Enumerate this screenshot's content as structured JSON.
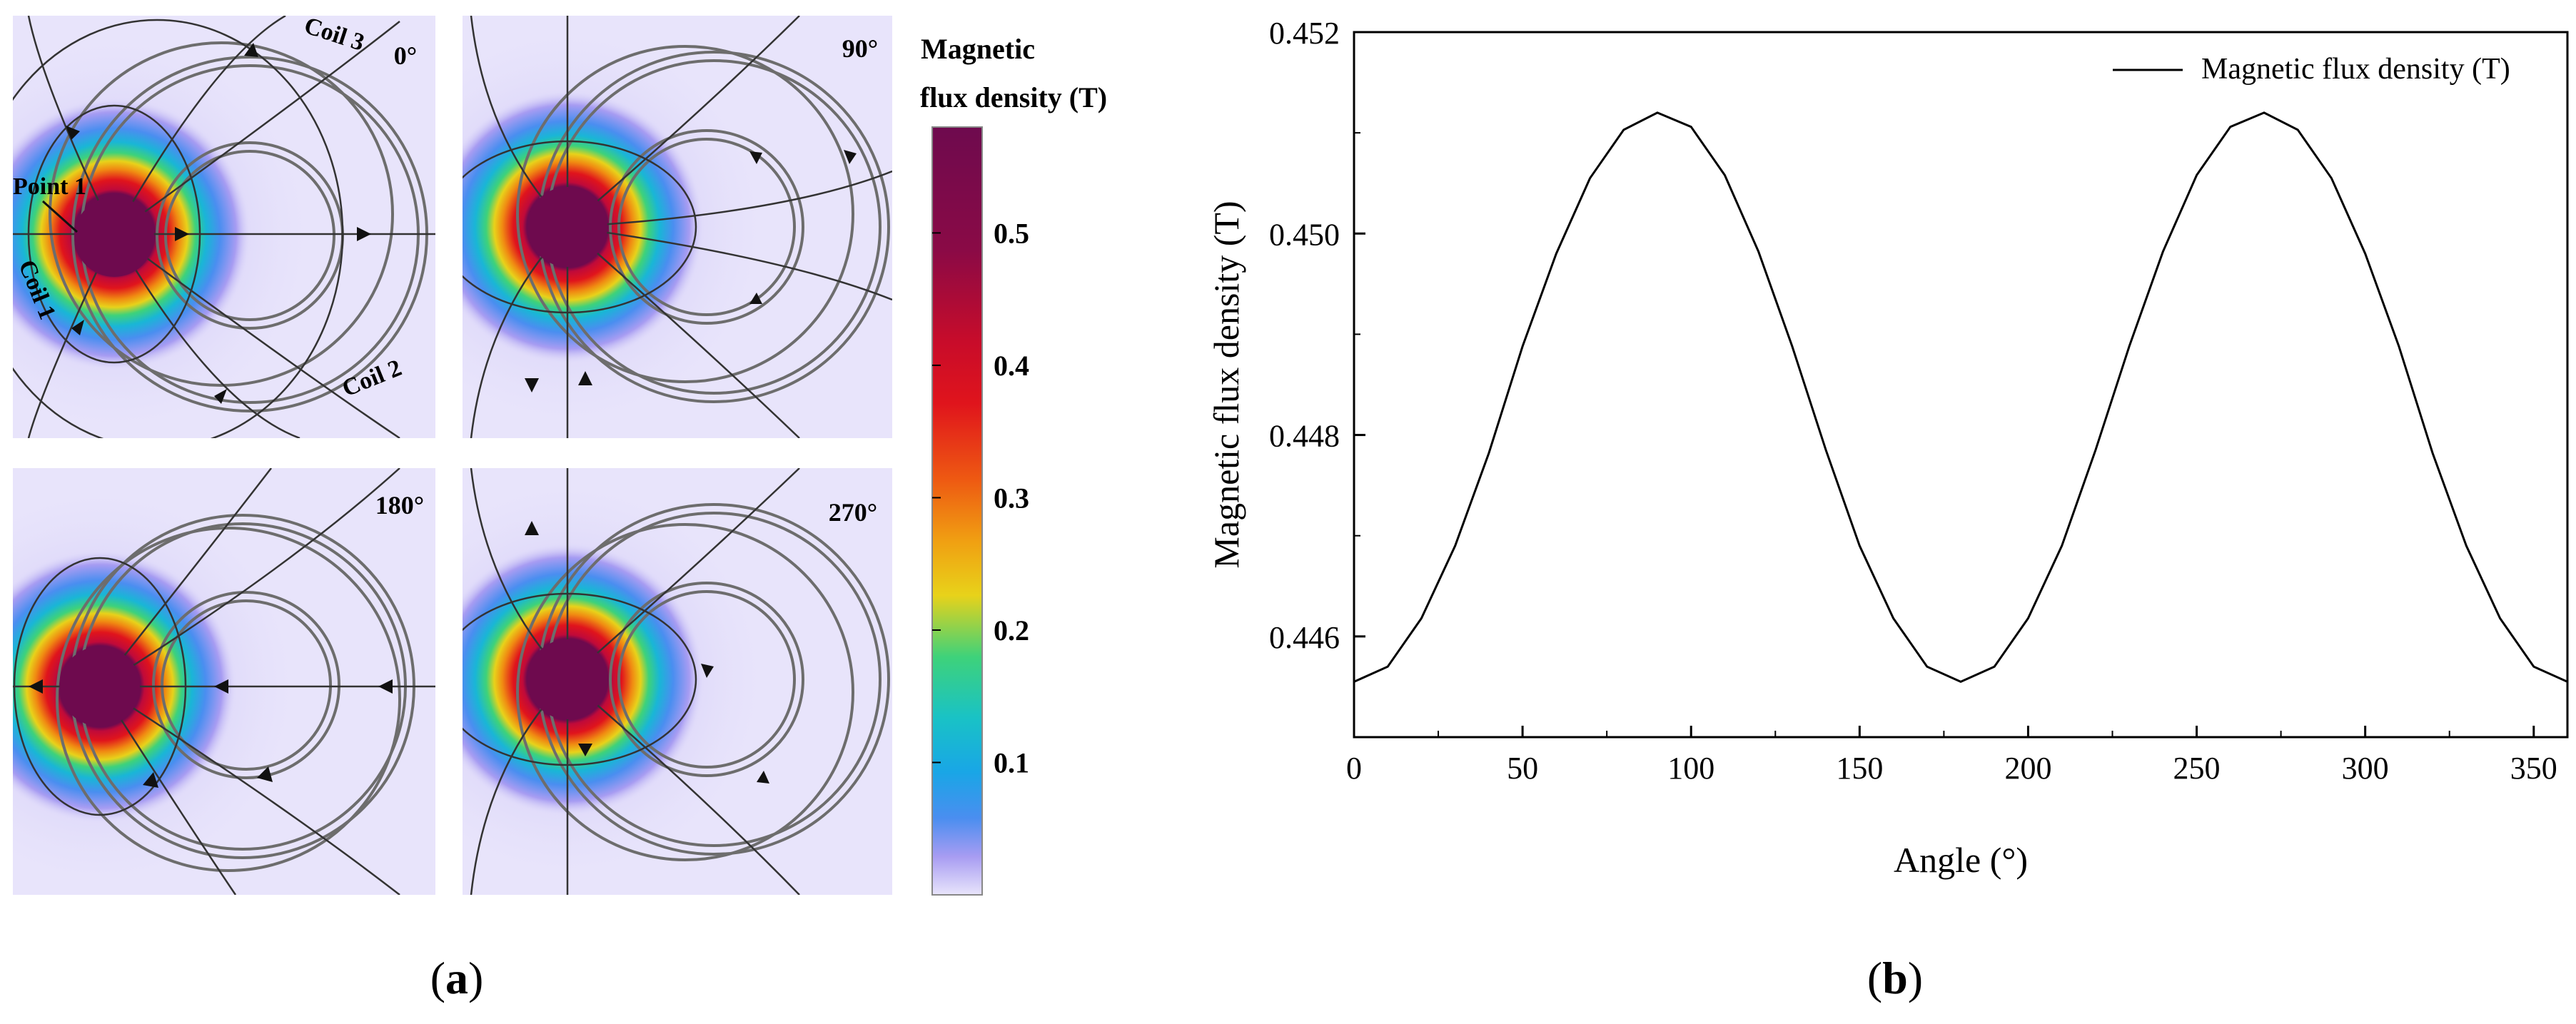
{
  "panel_a": {
    "label_open": "(",
    "label_letter": "a",
    "label_close": ")",
    "views": [
      {
        "angle_label": "0°",
        "coil_labels": [
          "Coil 3",
          "Coil 2",
          "Coil 1"
        ],
        "point_label": "Point 1"
      },
      {
        "angle_label": "90°"
      },
      {
        "angle_label": "180°"
      },
      {
        "angle_label": "270°"
      }
    ],
    "colorbar": {
      "title_line1": "Magnetic",
      "title_line2": "flux density (T)",
      "ticks": [
        "0.5",
        "0.4",
        "0.3",
        "0.2",
        "0.1"
      ],
      "tick_values": [
        0.5,
        0.4,
        0.3,
        0.2,
        0.1
      ],
      "range": [
        0,
        0.58
      ],
      "colors": {
        "max": "#6e0a4e",
        "red": "#e0141c",
        "orange": "#f08a12",
        "yellow": "#e8d21a",
        "green": "#3ed27a",
        "cyan": "#19b6d6",
        "blue": "#4a8ef0",
        "violet": "#b9a8f3",
        "min": "#e8e4fb"
      }
    }
  },
  "panel_b": {
    "label_open": "(",
    "label_letter": "b",
    "label_close": ")"
  },
  "chart_data": {
    "type": "line",
    "title": "",
    "xlabel": "Angle (°)",
    "ylabel": "Magnetic flux density (T)",
    "xlim": [
      0,
      360
    ],
    "ylim": [
      0.445,
      0.452
    ],
    "xticks": [
      0,
      50,
      100,
      150,
      200,
      250,
      300,
      350
    ],
    "xtick_labels": [
      "0",
      "50",
      "100",
      "150",
      "200",
      "250",
      "300",
      "350"
    ],
    "yticks": [
      0.446,
      0.448,
      0.45,
      0.452
    ],
    "ytick_labels": [
      "0.446",
      "0.448",
      "0.450",
      "0.452"
    ],
    "legend": {
      "position": "top-right",
      "entries": [
        "Magnetic flux density (T)"
      ]
    },
    "series": [
      {
        "name": "Magnetic flux density (T)",
        "color": "#000000",
        "x": [
          0,
          10,
          20,
          30,
          40,
          50,
          60,
          70,
          80,
          90,
          100,
          110,
          120,
          130,
          140,
          150,
          160,
          170,
          180,
          190,
          200,
          210,
          220,
          230,
          240,
          250,
          260,
          270,
          280,
          290,
          300,
          310,
          320,
          330,
          340,
          350,
          360
        ],
        "y": [
          0.44555,
          0.4457,
          0.44618,
          0.4469,
          0.44782,
          0.44888,
          0.4498,
          0.45055,
          0.45103,
          0.4512,
          0.45106,
          0.45058,
          0.44982,
          0.44888,
          0.44785,
          0.4469,
          0.44618,
          0.4457,
          0.44555,
          0.4457,
          0.44618,
          0.4469,
          0.44785,
          0.44888,
          0.44982,
          0.45058,
          0.45106,
          0.4512,
          0.45103,
          0.45055,
          0.4498,
          0.44888,
          0.44782,
          0.4469,
          0.44618,
          0.4457,
          0.44555
        ]
      }
    ]
  }
}
